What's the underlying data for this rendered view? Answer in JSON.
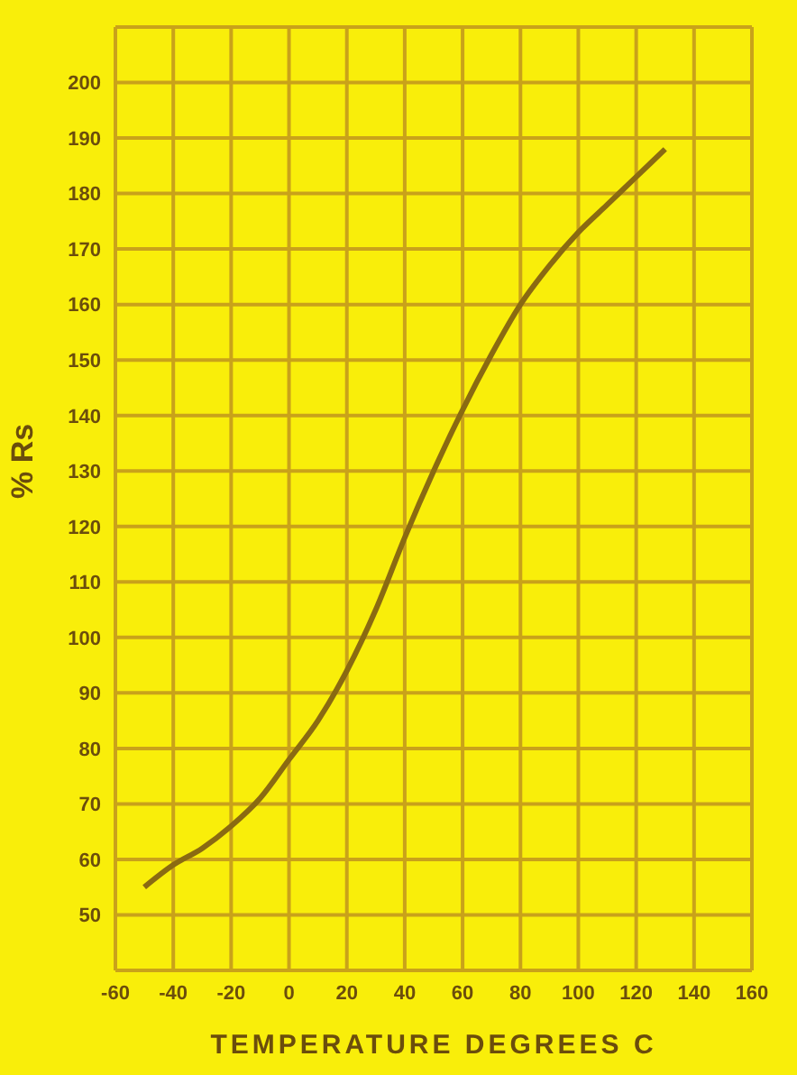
{
  "chart_data": {
    "type": "line",
    "xlabel": "TEMPERATURE  DEGREES  C",
    "ylabel": "% Rs",
    "x": [
      -50,
      -40,
      -30,
      -20,
      -10,
      0,
      10,
      20,
      30,
      40,
      50,
      60,
      70,
      80,
      90,
      100,
      110,
      120,
      130
    ],
    "series": [
      {
        "color": "#8a6a12",
        "values": [
          55,
          59,
          62,
          66,
          71,
          78,
          85,
          94,
          105,
          118,
          130,
          141,
          151,
          160,
          167,
          173,
          178,
          183,
          188
        ]
      }
    ],
    "xlim": [
      -60,
      160
    ],
    "xticks": [
      -60,
      -40,
      -20,
      0,
      20,
      40,
      60,
      80,
      100,
      120,
      140,
      160
    ],
    "ylim": [
      40,
      210
    ],
    "yticks": [
      50,
      60,
      70,
      80,
      90,
      100,
      110,
      120,
      130,
      140,
      150,
      160,
      170,
      180,
      190,
      200
    ],
    "grid": true,
    "marker": "none",
    "line_style": "solid",
    "legend": false
  }
}
